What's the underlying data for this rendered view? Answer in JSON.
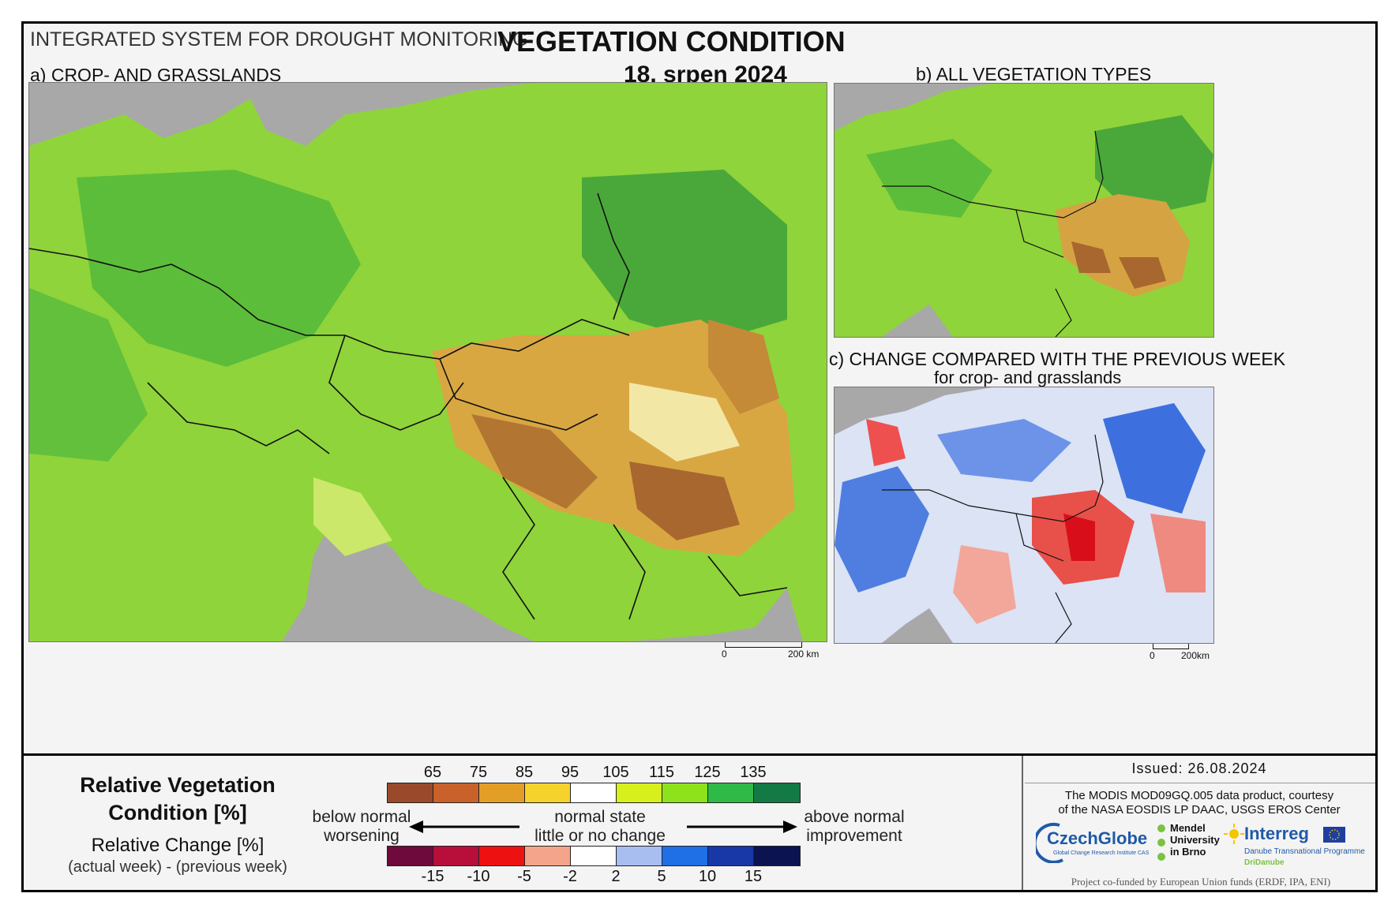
{
  "header": {
    "system": "INTEGRATED SYSTEM FOR DROUGHT MONITORING",
    "title": "VEGETATION CONDITION",
    "date": "18. srpen 2024"
  },
  "panels": {
    "a": "a) CROP- AND GRASSLANDS",
    "b": "b) ALL VEGETATION TYPES",
    "c": "c) CHANGE COMPARED WITH THE PREVIOUS WEEK",
    "c_sub": "for crop- and grasslands"
  },
  "scale": {
    "zero": "0",
    "km": "200 km",
    "km_small": "200km"
  },
  "legend": {
    "rvc_title_1": "Relative Vegetation",
    "rvc_title_2": "Condition [%]",
    "rc_title": "Relative Change [%]",
    "rc_sub": "(actual week) - (previous week)",
    "rvc_ticks": [
      "65",
      "75",
      "85",
      "95",
      "105",
      "115",
      "125",
      "135"
    ],
    "rvc_colors": [
      "#9a4a2a",
      "#c8622a",
      "#e39e27",
      "#f6d22c",
      "#ffffff",
      "#d8ef1e",
      "#8ee21b",
      "#2fba48",
      "#137a45"
    ],
    "rc_ticks": [
      "-15",
      "-10",
      "-5",
      "-2",
      "2",
      "5",
      "10",
      "15"
    ],
    "rc_colors": [
      "#6e0a3c",
      "#b80e3a",
      "#ee1111",
      "#f4a48a",
      "#ffffff",
      "#a8bdf0",
      "#1f6fe6",
      "#1738a6",
      "#0b1450"
    ],
    "below_1": "below normal",
    "below_2": "worsening",
    "normal_1": "normal state",
    "normal_2": "little or no change",
    "above_1": "above normal",
    "above_2": "improvement"
  },
  "footer": {
    "issued": "Issued: 26.08.2024",
    "courtesy_1": "The MODIS MOD09GQ.005 data product, courtesy",
    "courtesy_2": "of the NASA EOSDIS LP DAAC, USGS EROS Center",
    "czechglobe": "CzechGlobe",
    "czechglobe_sub": "Global Change Research Institute CAS",
    "mendel_1": "Mendel",
    "mendel_2": "University",
    "mendel_3": "in Brno",
    "interreg": "Interreg",
    "interreg_sub": "Danube Transnational Programme",
    "dridanube": "DriDanube",
    "cofund": "Project co-funded by European Union funds (ERDF, IPA, ENI)"
  }
}
